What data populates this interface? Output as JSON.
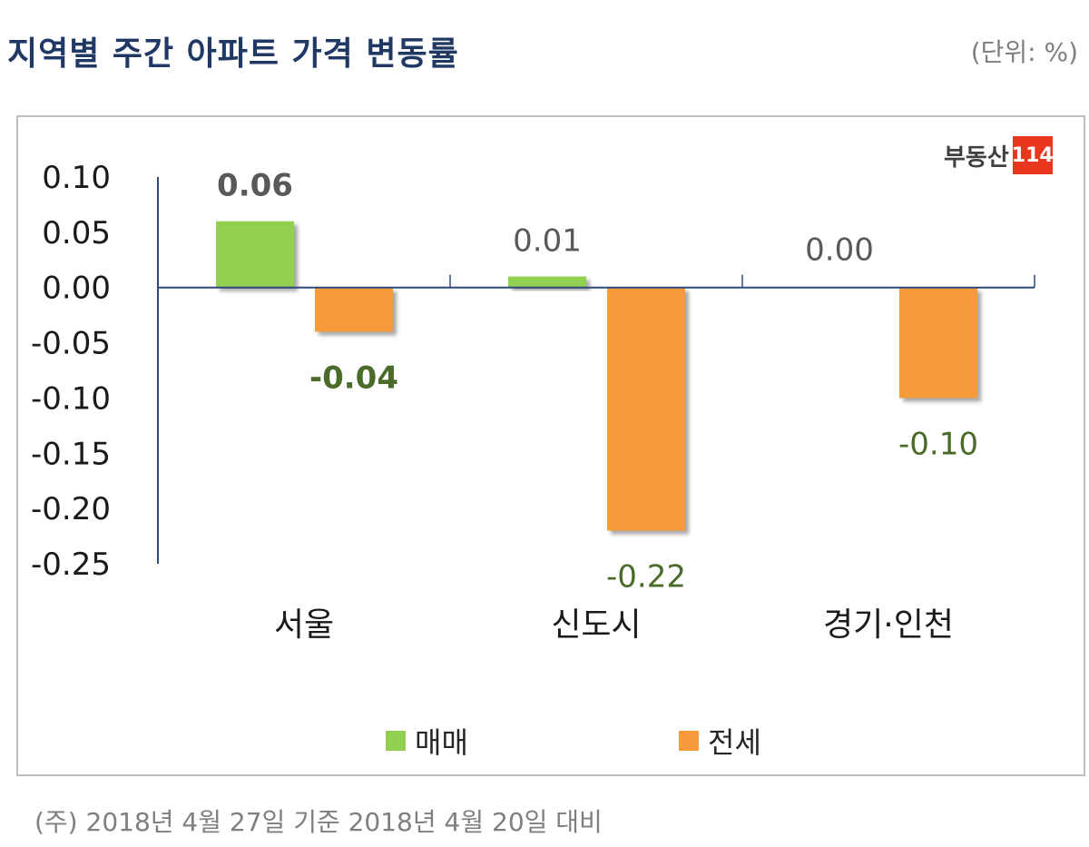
{
  "header": {
    "title": "지역별 주간 아파트 가격 변동률",
    "unit": "(단위: %)"
  },
  "logo": {
    "text": "부동산",
    "badge": "114"
  },
  "footnote": "(주) 2018년 4월 27일 기준 2018년 4월 20일 대비",
  "chart_data": {
    "type": "bar",
    "categories": [
      "서울",
      "신도시",
      "경기·인천"
    ],
    "series": [
      {
        "name": "매매",
        "values": [
          0.06,
          0.01,
          0.0
        ],
        "labels": [
          "0.06",
          "0.01",
          "0.00"
        ],
        "color": "#92d050"
      },
      {
        "name": "전세",
        "values": [
          -0.04,
          -0.22,
          -0.1
        ],
        "labels": [
          "-0.04",
          "-0.22",
          "-0.10"
        ],
        "color": "#f79a3b"
      }
    ],
    "ylim": [
      -0.25,
      0.1
    ],
    "yticks": [
      "0.10",
      "0.05",
      "0.00",
      "-0.05",
      "-0.10",
      "-0.15",
      "-0.20",
      "-0.25"
    ],
    "legend": "bottom",
    "grid": false
  }
}
